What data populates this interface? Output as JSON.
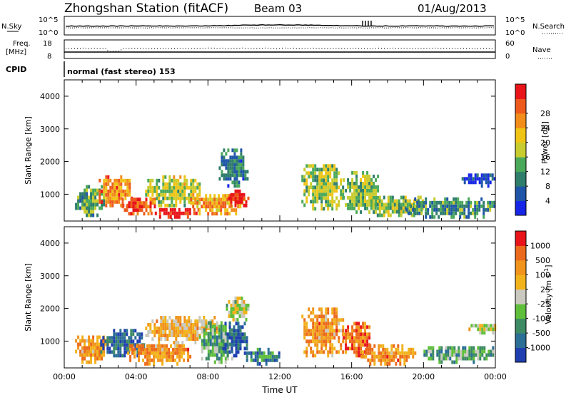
{
  "header": {
    "station": "Zhongshan Station (fitACF)",
    "beam": "Beam 03",
    "date": "01/Aug/2013"
  },
  "panels": {
    "nsky": {
      "label": "N.Sky",
      "ticks": [
        "10^5",
        "10^0"
      ],
      "right_ticks": [
        "10^5",
        "10^0"
      ],
      "right_label": "N.Search"
    },
    "freq": {
      "label_top": "Freq.",
      "label_unit": "[MHz]",
      "ticks": [
        "18",
        "8"
      ],
      "right_ticks": [
        "60",
        "0"
      ],
      "right_label": "Nave"
    },
    "cpid": {
      "label": "CPID",
      "text": "normal (fast stereo) 153"
    }
  },
  "chart_data": [
    {
      "type": "heatmap",
      "name": "power",
      "ylabel": "Slant Range [km]",
      "ylim": [
        180,
        4500
      ],
      "yticks": [
        "1000",
        "2000",
        "3000",
        "4000"
      ],
      "xlim_hours": [
        0,
        24
      ],
      "colorbar": {
        "label": "Power [dB]",
        "ticks": [
          "4",
          "8",
          "12",
          "16",
          "20",
          "24",
          "28"
        ],
        "colors": [
          "#1726e6",
          "#1f55a8",
          "#2f7d6b",
          "#4aa85a",
          "#c8cc2e",
          "#f0c415",
          "#f28c1a",
          "#ee5a1c",
          "#e8141a"
        ]
      },
      "blobs": [
        {
          "t0": 0.6,
          "t1": 2.2,
          "r0": 300,
          "r1": 1200,
          "level": 0.35
        },
        {
          "t0": 1.8,
          "t1": 3.8,
          "r0": 600,
          "r1": 1500,
          "level": 0.75
        },
        {
          "t0": 3.2,
          "t1": 5.0,
          "r0": 350,
          "r1": 900,
          "level": 0.85
        },
        {
          "t0": 4.8,
          "t1": 7.5,
          "r0": 250,
          "r1": 500,
          "level": 0.95
        },
        {
          "t0": 4.5,
          "t1": 7.5,
          "r0": 600,
          "r1": 1500,
          "level": 0.5
        },
        {
          "t0": 7.0,
          "t1": 10.0,
          "r0": 350,
          "r1": 1000,
          "level": 0.7
        },
        {
          "t0": 9.0,
          "t1": 10.3,
          "r0": 600,
          "r1": 1100,
          "level": 0.98
        },
        {
          "t0": 8.6,
          "t1": 10.2,
          "r0": 1200,
          "r1": 2300,
          "level": 0.25
        },
        {
          "t0": 13.2,
          "t1": 15.5,
          "r0": 500,
          "r1": 1900,
          "level": 0.45
        },
        {
          "t0": 15.5,
          "t1": 17.5,
          "r0": 400,
          "r1": 1600,
          "level": 0.4
        },
        {
          "t0": 16.8,
          "t1": 20.0,
          "r0": 300,
          "r1": 900,
          "level": 0.45
        },
        {
          "t0": 19.0,
          "t1": 24.0,
          "r0": 250,
          "r1": 800,
          "level": 0.3
        },
        {
          "t0": 22.0,
          "t1": 24.0,
          "r0": 1200,
          "r1": 1600,
          "level": 0.1
        }
      ]
    },
    {
      "type": "heatmap",
      "name": "velocity",
      "ylabel": "Slant Range [km]",
      "ylim": [
        180,
        4500
      ],
      "yticks": [
        "1000",
        "2000",
        "3000",
        "4000"
      ],
      "xlim_hours": [
        0,
        24
      ],
      "xticks": [
        "00:00",
        "04:00",
        "08:00",
        "12:00",
        "16:00",
        "20:00",
        "00:00"
      ],
      "xlabel": "Time UT",
      "colorbar": {
        "label": "Velocity [m s^-1]",
        "ticks": [
          "1000",
          "500",
          "100",
          "25",
          "-25",
          "-100",
          "-500",
          "-1000"
        ],
        "colors": [
          "#1f3fb0",
          "#2b6e96",
          "#3d8a64",
          "#5fbf3a",
          "#c9c9bf",
          "#f2b21b",
          "#f0941c",
          "#ec6a1c",
          "#e8141a"
        ]
      },
      "blobs": [
        {
          "t0": 0.6,
          "t1": 2.4,
          "r0": 300,
          "r1": 1100,
          "level": 0.7
        },
        {
          "t0": 2.0,
          "t1": 4.4,
          "r0": 500,
          "r1": 1300,
          "level": 0.15
        },
        {
          "t0": 3.5,
          "t1": 7.0,
          "r0": 250,
          "r1": 900,
          "level": 0.72
        },
        {
          "t0": 4.5,
          "t1": 8.5,
          "r0": 900,
          "r1": 1700,
          "level": 0.62
        },
        {
          "t0": 7.5,
          "t1": 9.5,
          "r0": 300,
          "r1": 1500,
          "level": 0.35
        },
        {
          "t0": 8.8,
          "t1": 10.2,
          "r0": 500,
          "r1": 1500,
          "level": 0.1
        },
        {
          "t0": 9.0,
          "t1": 10.2,
          "r0": 1600,
          "r1": 2300,
          "level": 0.5
        },
        {
          "t0": 10.0,
          "t1": 12.0,
          "r0": 250,
          "r1": 700,
          "level": 0.25
        },
        {
          "t0": 13.2,
          "t1": 15.5,
          "r0": 500,
          "r1": 2000,
          "level": 0.72
        },
        {
          "t0": 15.5,
          "t1": 17.0,
          "r0": 500,
          "r1": 1500,
          "level": 0.78
        },
        {
          "t0": 16.5,
          "t1": 19.5,
          "r0": 250,
          "r1": 800,
          "level": 0.72
        },
        {
          "t0": 20.0,
          "t1": 24.0,
          "r0": 300,
          "r1": 800,
          "level": 0.35
        },
        {
          "t0": 22.5,
          "t1": 24.0,
          "r0": 1200,
          "r1": 1500,
          "level": 0.5
        }
      ]
    }
  ]
}
